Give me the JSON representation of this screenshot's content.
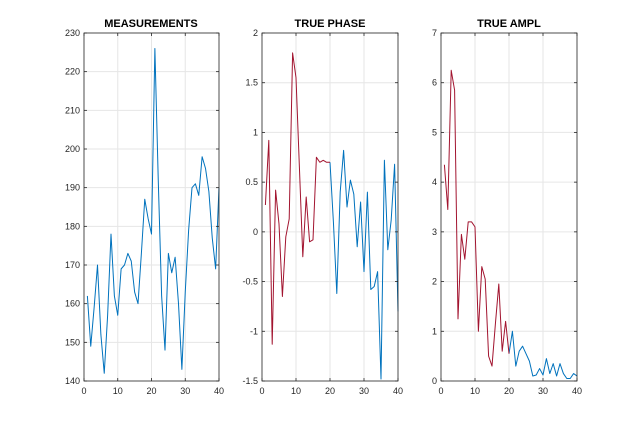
{
  "colors": {
    "blue": "#0072BD",
    "red": "#A2142F",
    "grid": "#e6e6e6",
    "axis": "#262626"
  },
  "chart_data": [
    {
      "type": "line",
      "title": "MEASUREMENTS",
      "xlim": [
        0,
        40
      ],
      "ylim": [
        140,
        230
      ],
      "xticks": [
        0,
        10,
        20,
        30,
        40
      ],
      "yticks": [
        140,
        150,
        160,
        170,
        180,
        190,
        200,
        210,
        220,
        230
      ],
      "grid": true,
      "series": [
        {
          "color": "#0072BD",
          "x": [
            1,
            2,
            3,
            4,
            5,
            6,
            7,
            8,
            9,
            10,
            11,
            12,
            13,
            14,
            15,
            16,
            17,
            18,
            19,
            20,
            21,
            22,
            23,
            24,
            25,
            26,
            27,
            28,
            29,
            30,
            31,
            32,
            33,
            34,
            35,
            36,
            37,
            38,
            39,
            40
          ],
          "values": [
            162,
            149,
            159,
            170,
            152,
            142,
            157,
            178,
            162,
            157,
            169,
            170,
            173,
            171,
            163,
            160,
            173,
            187,
            182,
            178,
            226,
            192,
            162,
            148,
            173,
            168,
            172,
            160,
            143,
            163,
            179,
            190,
            191,
            188,
            198,
            195,
            189,
            177,
            169,
            190
          ]
        }
      ]
    },
    {
      "type": "line",
      "title": "TRUE PHASE",
      "xlim": [
        0,
        40
      ],
      "ylim": [
        -1.5,
        2
      ],
      "xticks": [
        0,
        10,
        20,
        30,
        40
      ],
      "yticks": [
        "-1.5",
        "-1",
        "-0.5",
        "0",
        "0.5",
        "1",
        "1.5",
        "2"
      ],
      "grid": true,
      "series": [
        {
          "color": "#0072BD",
          "x": [
            20,
            21,
            22,
            23,
            24,
            25,
            26,
            27,
            28,
            29,
            30,
            31,
            32,
            33,
            34,
            35,
            36,
            37,
            38,
            39,
            40
          ],
          "values": [
            0.7,
            0.1,
            -0.62,
            0.4,
            0.82,
            0.25,
            0.52,
            0.38,
            -0.15,
            0.3,
            -0.4,
            0.4,
            -0.58,
            -0.55,
            -0.4,
            -1.48,
            0.72,
            -0.18,
            0.12,
            0.68,
            -0.8
          ]
        },
        {
          "color": "#A2142F",
          "x": [
            1,
            2,
            3,
            4,
            5,
            6,
            7,
            8,
            9,
            10,
            11,
            12,
            13,
            14,
            15,
            16,
            17,
            18,
            19,
            20
          ],
          "values": [
            0.27,
            0.92,
            -1.13,
            0.42,
            0.08,
            -0.65,
            -0.05,
            0.13,
            1.8,
            1.55,
            0.65,
            -0.25,
            0.35,
            -0.1,
            -0.08,
            0.75,
            0.7,
            0.72,
            0.7,
            0.7
          ]
        }
      ]
    },
    {
      "type": "line",
      "title": "TRUE AMPL",
      "xlim": [
        0,
        40
      ],
      "ylim": [
        0,
        7
      ],
      "xticks": [
        0,
        10,
        20,
        30,
        40
      ],
      "yticks": [
        0,
        1,
        2,
        3,
        4,
        5,
        6,
        7
      ],
      "grid": true,
      "series": [
        {
          "color": "#0072BD",
          "x": [
            20,
            21,
            22,
            23,
            24,
            25,
            26,
            27,
            28,
            29,
            30,
            31,
            32,
            33,
            34,
            35,
            36,
            37,
            38,
            39,
            40
          ],
          "values": [
            0.55,
            1.0,
            0.3,
            0.6,
            0.7,
            0.55,
            0.4,
            0.1,
            0.12,
            0.25,
            0.12,
            0.45,
            0.15,
            0.35,
            0.1,
            0.35,
            0.15,
            0.05,
            0.05,
            0.15,
            0.1
          ]
        },
        {
          "color": "#A2142F",
          "x": [
            1,
            2,
            3,
            4,
            5,
            6,
            7,
            8,
            9,
            10,
            11,
            12,
            13,
            14,
            15,
            16,
            17,
            18,
            19,
            20
          ],
          "values": [
            4.35,
            3.45,
            6.25,
            5.85,
            1.25,
            2.95,
            2.45,
            3.2,
            3.2,
            3.1,
            1.0,
            2.3,
            2.05,
            0.5,
            0.3,
            1.15,
            1.95,
            0.6,
            1.2,
            0.55
          ]
        }
      ]
    }
  ]
}
